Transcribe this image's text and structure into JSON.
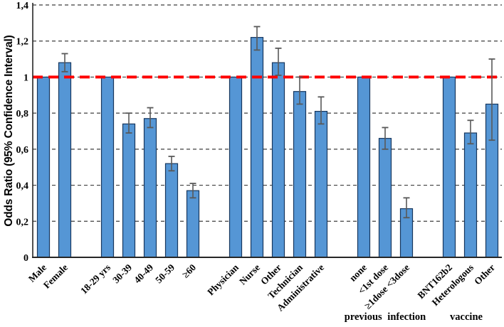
{
  "chart_data": {
    "type": "bar",
    "title": "",
    "ylabel": "Odds Ratio (95% Confidence Interval)",
    "xlabel": "",
    "ylim": [
      0,
      1.4
    ],
    "ytick_values": [
      0,
      0.2,
      0.4,
      0.6,
      0.8,
      1.0,
      1.2,
      1.4
    ],
    "ytick_labels": [
      "0",
      "0,2",
      "0,4",
      "0,6",
      "0,8",
      "1",
      "1,2",
      "1,4"
    ],
    "decimal_separator": ",",
    "grid": "horizontal-dashed",
    "legend": "none",
    "reference_line": {
      "value": 1.0,
      "color": "#FF0000",
      "style": "dashed",
      "width": 4
    },
    "colors": {
      "bar_fill": "#5596D5",
      "bar_border": "#17375E",
      "error_bar": "#595959",
      "gridline": "#3F3F3F",
      "axis": "#262626",
      "text": "#000000"
    },
    "groups": [
      {
        "caption": "",
        "bars": [
          {
            "label": "Male",
            "value": 1.0,
            "ci_low": null,
            "ci_high": null
          },
          {
            "label": "Female",
            "value": 1.08,
            "ci_low": 1.03,
            "ci_high": 1.13
          }
        ]
      },
      {
        "caption": "",
        "bars": [
          {
            "label": "18-29 yrs",
            "value": 1.0,
            "ci_low": null,
            "ci_high": null
          },
          {
            "label": "30-39",
            "value": 0.74,
            "ci_low": 0.69,
            "ci_high": 0.8
          },
          {
            "label": "40-49",
            "value": 0.77,
            "ci_low": 0.72,
            "ci_high": 0.83
          },
          {
            "label": "50-59",
            "value": 0.52,
            "ci_low": 0.48,
            "ci_high": 0.56
          },
          {
            "label": "≥60",
            "value": 0.37,
            "ci_low": 0.33,
            "ci_high": 0.41
          }
        ]
      },
      {
        "caption": "",
        "bars": [
          {
            "label": "Physician",
            "value": 1.0,
            "ci_low": null,
            "ci_high": null
          },
          {
            "label": "Nurse",
            "value": 1.22,
            "ci_low": 1.15,
            "ci_high": 1.28
          },
          {
            "label": "Other",
            "value": 1.08,
            "ci_low": 1.01,
            "ci_high": 1.16
          },
          {
            "label": "Technician",
            "value": 0.92,
            "ci_low": 0.85,
            "ci_high": 1.0
          },
          {
            "label": "Administrative",
            "value": 0.81,
            "ci_low": 0.74,
            "ci_high": 0.89
          }
        ]
      },
      {
        "caption": "previous infection",
        "bars": [
          {
            "label": "none",
            "value": 1.0,
            "ci_low": null,
            "ci_high": null
          },
          {
            "label": "<1st dose",
            "value": 0.66,
            "ci_low": 0.6,
            "ci_high": 0.72
          },
          {
            "label": "≥1dose <3dose",
            "value": 0.27,
            "ci_low": 0.22,
            "ci_high": 0.33
          }
        ]
      },
      {
        "caption": "vaccine",
        "bars": [
          {
            "label": "BNT162b2",
            "value": 1.0,
            "ci_low": null,
            "ci_high": null
          },
          {
            "label": "Heterologous",
            "value": 0.69,
            "ci_low": 0.63,
            "ci_high": 0.76
          },
          {
            "label": "Other",
            "value": 0.85,
            "ci_low": 0.65,
            "ci_high": 1.1
          }
        ]
      }
    ]
  }
}
